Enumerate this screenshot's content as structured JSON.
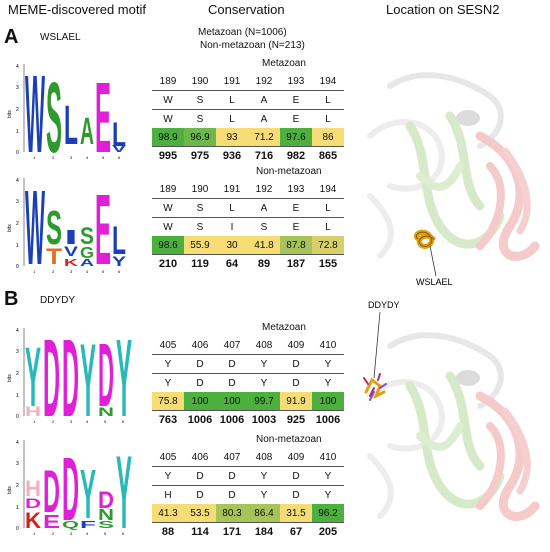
{
  "headers": {
    "motif": "MEME-discovered motif",
    "conservation": "Conservation",
    "location": "Location on SESN2"
  },
  "panels": [
    {
      "letter": "A",
      "motif_name": "WSLAEL",
      "counts_header": [
        "Metazoan (N=1006)",
        "Non-metazoan (N=213)"
      ],
      "tables": [
        {
          "title": "Metazoan",
          "positions": [
            "189",
            "190",
            "191",
            "192",
            "193",
            "194"
          ],
          "row1": [
            "W",
            "S",
            "L",
            "A",
            "E",
            "L"
          ],
          "row2": [
            "W",
            "S",
            "L",
            "A",
            "E",
            "L"
          ],
          "percent": [
            "98.9",
            "96.9",
            "93",
            "71.2",
            "97.6",
            "86"
          ],
          "counts": [
            "995",
            "975",
            "936",
            "716",
            "982",
            "865"
          ]
        },
        {
          "title": "Non-metazoan",
          "positions": [
            "189",
            "190",
            "191",
            "192",
            "193",
            "194"
          ],
          "row1": [
            "W",
            "S",
            "L",
            "A",
            "E",
            "L"
          ],
          "row2": [
            "W",
            "S",
            "I",
            "S",
            "E",
            "L"
          ],
          "percent": [
            "98.6",
            "55.9",
            "30",
            "41.8",
            "87.8",
            "72.8"
          ],
          "counts": [
            "210",
            "119",
            "64",
            "89",
            "187",
            "155"
          ]
        }
      ],
      "structure_label": "WSLAEL"
    },
    {
      "letter": "B",
      "motif_name": "DDYDY",
      "tables": [
        {
          "title": "Metazoan",
          "positions": [
            "405",
            "406",
            "407",
            "408",
            "409",
            "410"
          ],
          "row1": [
            "Y",
            "D",
            "D",
            "Y",
            "D",
            "Y"
          ],
          "row2": [
            "Y",
            "D",
            "D",
            "Y",
            "D",
            "Y"
          ],
          "percent": [
            "75.8",
            "100",
            "100",
            "99.7",
            "91.9",
            "100"
          ],
          "counts": [
            "763",
            "1006",
            "1006",
            "1003",
            "925",
            "1006"
          ]
        },
        {
          "title": "Non-metazoan",
          "positions": [
            "405",
            "406",
            "407",
            "408",
            "409",
            "410"
          ],
          "row1": [
            "Y",
            "D",
            "D",
            "Y",
            "D",
            "Y"
          ],
          "row2": [
            "H",
            "D",
            "D",
            "Y",
            "D",
            "Y"
          ],
          "percent": [
            "41.3",
            "53.5",
            "80.3",
            "86.4",
            "31.5",
            "96.2"
          ],
          "counts": [
            "88",
            "114",
            "171",
            "184",
            "67",
            "205"
          ]
        }
      ],
      "structure_label": "DDYDY"
    }
  ],
  "logo_axis": {
    "label": "bits",
    "ticks": [
      "0",
      "1",
      "2",
      "3",
      "4"
    ],
    "positions": [
      "1",
      "2",
      "3",
      "4",
      "5",
      "6"
    ]
  },
  "colors": {
    "high": "#4caf3e",
    "mid": "#a6c45a",
    "low": "#f6dc74",
    "W": "#1a3fb8",
    "S": "#2e9a2e",
    "L": "#1a3fb8",
    "A": "#1a3fb8",
    "E": "#e020d8",
    "D": "#e020d8",
    "Y": "#2ab8b8",
    "K": "#d42020"
  }
}
